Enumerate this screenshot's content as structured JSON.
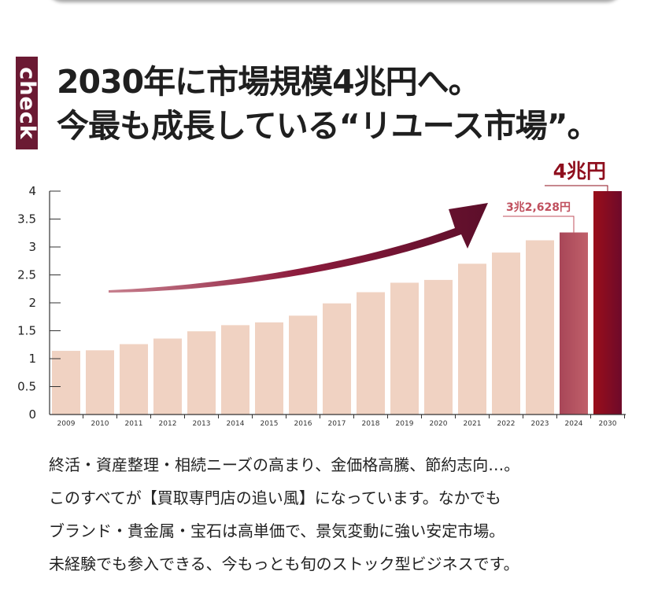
{
  "check_label": "check",
  "headline": {
    "line1": "2030年に市場規模4兆円へ。",
    "line2": "今最も成長している“リユース市場”。"
  },
  "chart_data": {
    "type": "bar",
    "categories": [
      "2009",
      "2010",
      "2011",
      "2012",
      "2013",
      "2014",
      "2015",
      "2016",
      "2017",
      "2018",
      "2019",
      "2020",
      "2021",
      "2022",
      "2023",
      "2024",
      "2030"
    ],
    "values": [
      1.14,
      1.15,
      1.26,
      1.36,
      1.49,
      1.6,
      1.65,
      1.77,
      1.99,
      2.19,
      2.36,
      2.41,
      2.7,
      2.9,
      3.12,
      3.26,
      4.0
    ],
    "yticks": [
      0,
      0.5,
      1,
      1.5,
      2,
      2.5,
      3,
      3.5,
      4
    ],
    "ylim": [
      0,
      4
    ],
    "annotations": [
      {
        "category": "2024",
        "text": "3兆2,628円",
        "color": "#c0505e"
      },
      {
        "category": "2030",
        "text": "4兆円",
        "color": "#8f0f1e"
      }
    ],
    "colors": {
      "bar": "#f0d2c2",
      "bar_2024": "#b0505e",
      "bar_2030": "#8f0f1e",
      "arrow": "#8c1b3c"
    },
    "title": "",
    "xlabel": "",
    "ylabel": ""
  },
  "body": {
    "lines": [
      "終活・資産整理・相続ニーズの高まり、金価格高騰、節約志向…。",
      "このすべてが【買取専門店の追い風】になっています。なかでも",
      "ブランド・貴金属・宝石は高単価で、景気変動に強い安定市場。",
      "未経験でも参入できる、今もっとも旬のストック型ビジネスです。"
    ]
  }
}
